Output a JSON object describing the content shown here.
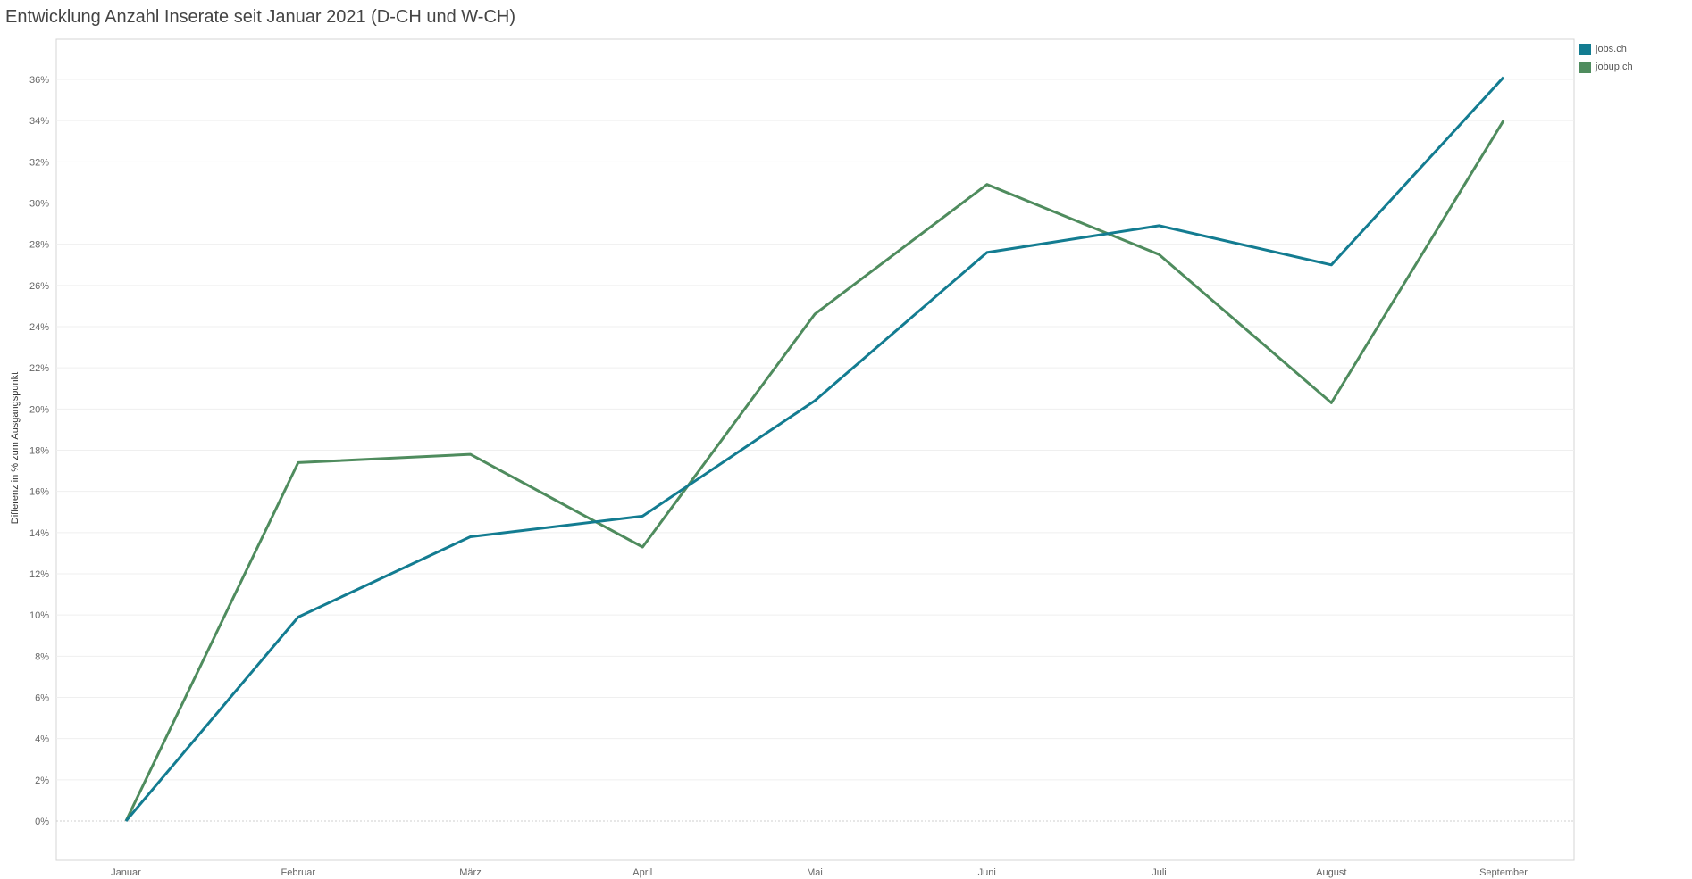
{
  "chart_data": {
    "type": "line",
    "title": "Entwicklung Anzahl Inserate seit Januar 2021 (D-CH und W-CH)",
    "ylabel": "Differenz in % zum Ausgangspunkt",
    "xlabel": "",
    "categories": [
      "Januar",
      "Februar",
      "März",
      "April",
      "Mai",
      "Juni",
      "Juli",
      "August",
      "September"
    ],
    "ylim": [
      -2,
      38
    ],
    "yticks": [
      0,
      2,
      4,
      6,
      8,
      10,
      12,
      14,
      16,
      18,
      20,
      22,
      24,
      26,
      28,
      30,
      32,
      34,
      36
    ],
    "ytick_labels": [
      "0%",
      "2%",
      "4%",
      "6%",
      "8%",
      "10%",
      "12%",
      "14%",
      "16%",
      "18%",
      "20%",
      "22%",
      "24%",
      "26%",
      "28%",
      "30%",
      "32%",
      "34%",
      "36%"
    ],
    "grid": true,
    "legend_position": "top-right",
    "series": [
      {
        "name": "jobs.ch",
        "color": "#137C91",
        "values": [
          0,
          9.9,
          13.8,
          14.8,
          20.4,
          27.6,
          28.9,
          27.0,
          36.1
        ]
      },
      {
        "name": "jobup.ch",
        "color": "#4F8C5E",
        "values": [
          0,
          17.4,
          17.8,
          13.3,
          24.6,
          30.9,
          27.5,
          20.3,
          34.0
        ]
      }
    ]
  }
}
